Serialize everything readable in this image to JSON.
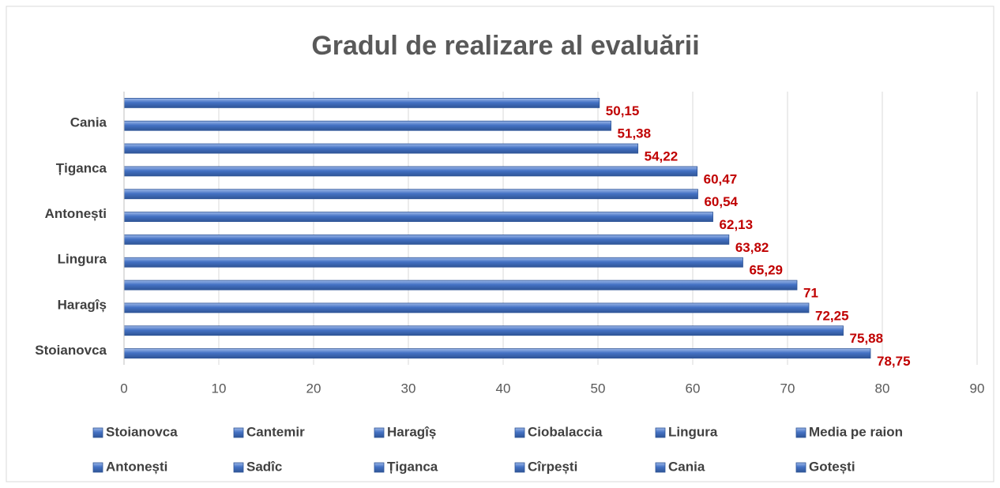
{
  "chart_data": {
    "type": "bar",
    "orientation": "horizontal",
    "title": "Gradul de realizare al evaluării",
    "categories": [
      "Stoianovca",
      null,
      "Haragîș",
      null,
      "Lingura",
      null,
      "Antonești",
      null,
      "Țiganca",
      null,
      "Cania",
      null
    ],
    "values": [
      78.75,
      75.88,
      72.25,
      71,
      65.29,
      63.82,
      62.13,
      60.54,
      60.47,
      54.22,
      51.38,
      50.15
    ],
    "value_labels": [
      "78,75",
      "75,88",
      "72,25",
      "71",
      "65,29",
      "63,82",
      "62,13",
      "60,54",
      "60,47",
      "54,22",
      "51,38",
      "50,15"
    ],
    "legend": [
      "Stoianovca",
      "Cantemir",
      "Haragîș",
      "Ciobalaccia",
      "Lingura",
      "Media pe raion",
      "Antonești",
      "Sadîc",
      "Țiganca",
      "Cîrpești",
      "Cania",
      "Gotești"
    ],
    "color": "#4472c4",
    "xlim": [
      0,
      90
    ],
    "xticks": [
      0,
      10,
      20,
      30,
      40,
      50,
      60,
      70,
      80,
      90
    ],
    "grid": true
  }
}
